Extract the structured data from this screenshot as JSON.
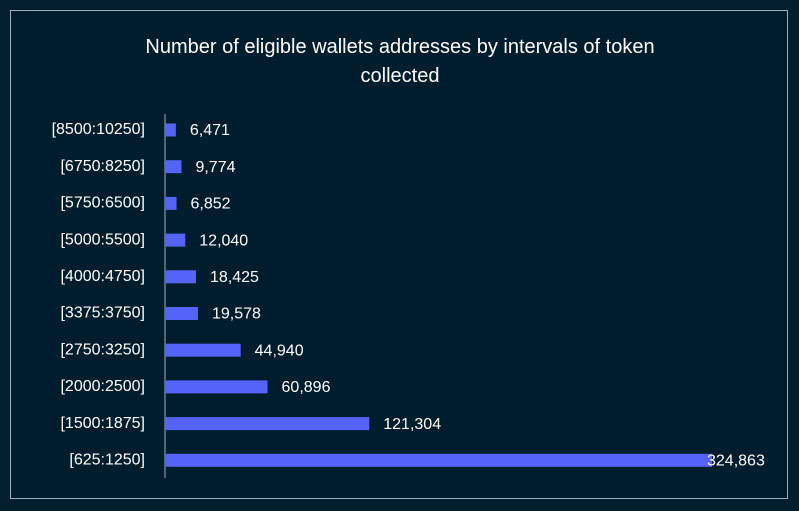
{
  "chart_data": {
    "type": "bar",
    "orientation": "horizontal",
    "title": "Number of eligible wallets addresses by intervals of token collected",
    "categories": [
      "[8500:10250]",
      "[6750:8250]",
      "[5750:6500]",
      "[5000:5500]",
      "[4000:4750]",
      "[3375:3750]",
      "[2750:3250]",
      "[2000:2500]",
      "[1500:1875]",
      "[625:1250]"
    ],
    "values": [
      6471,
      9774,
      6852,
      12040,
      18425,
      19578,
      44940,
      60896,
      121304,
      324863
    ],
    "value_labels": [
      "6,471",
      "9,774",
      "6,852",
      "12,040",
      "18,425",
      "19,578",
      "44,940",
      "60,896",
      "121,304",
      "324,863"
    ],
    "color": "#5563f6"
  }
}
